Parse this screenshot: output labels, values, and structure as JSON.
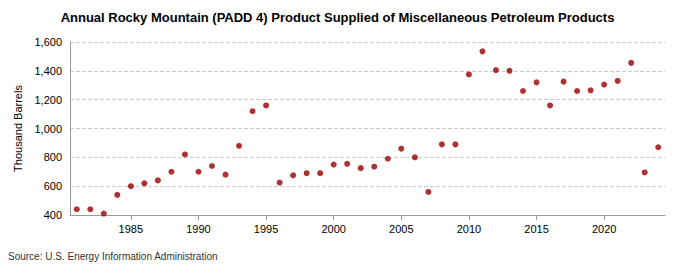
{
  "chart_data": {
    "type": "scatter",
    "title": "Annual Rocky Mountain (PADD 4) Product Supplied of Miscellaneous Petroleum Products",
    "y_label": "Thousand Barrels",
    "annotations": [
      "Source: U.S. Energy Information Administration"
    ],
    "x": [
      1981,
      1982,
      1983,
      1984,
      1985,
      1986,
      1987,
      1988,
      1989,
      1990,
      1991,
      1992,
      1993,
      1994,
      1995,
      1996,
      1997,
      1998,
      1999,
      2000,
      2001,
      2002,
      2003,
      2004,
      2005,
      2006,
      2007,
      2008,
      2009,
      2010,
      2011,
      2012,
      2013,
      2014,
      2015,
      2016,
      2017,
      2018,
      2019,
      2020,
      2021,
      2022,
      2023,
      2024
    ],
    "values": [
      440,
      440,
      410,
      540,
      600,
      620,
      640,
      700,
      820,
      700,
      740,
      680,
      880,
      1120,
      1160,
      625,
      675,
      690,
      690,
      750,
      755,
      725,
      735,
      790,
      860,
      800,
      560,
      890,
      890,
      1375,
      1535,
      1405,
      1400,
      1260,
      1320,
      1160,
      1325,
      1260,
      1265,
      1305,
      1330,
      1455,
      695,
      870
    ],
    "color": "#990000",
    "marker": "circle",
    "xlim": [
      1980.5,
      2024.5
    ],
    "xticks": [
      1985,
      1990,
      1995,
      2000,
      2005,
      2010,
      2015,
      2020
    ],
    "ylim": [
      400,
      1600
    ],
    "yticks": [
      400,
      600,
      800,
      {
        "value": 1000,
        "label": "1,000"
      },
      {
        "value": 1200,
        "label": "1,200"
      },
      {
        "value": 1400,
        "label": "1,400"
      },
      {
        "value": 1600,
        "label": "1,600"
      }
    ],
    "grid": true
  }
}
